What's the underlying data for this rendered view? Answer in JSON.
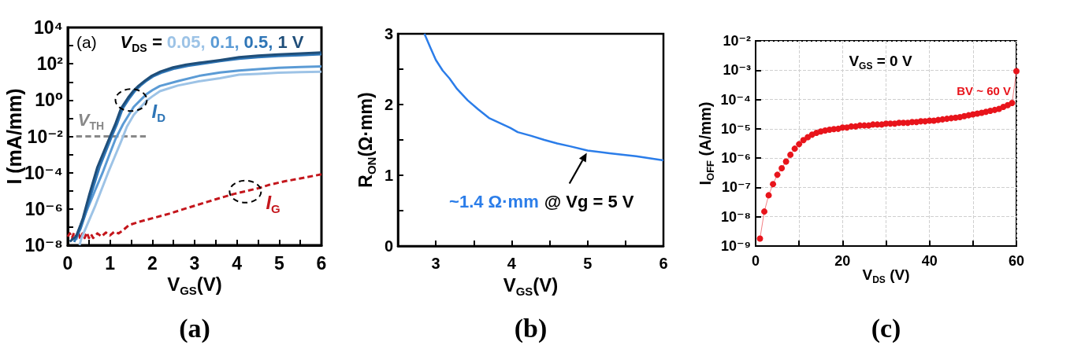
{
  "chart_data": [
    {
      "type": "line",
      "title": "(a)",
      "xlabel": "V$_{GS}$(V)",
      "ylabel": "I (mA/mm)",
      "legend_title": "V$_{DS}$ =",
      "legend": "top",
      "log": "y",
      "xlim": [
        0,
        6
      ],
      "xticks": [
        0,
        {
          "value": 0.5,
          "label": null
        },
        1,
        {
          "value": 1.5,
          "label": null
        },
        2,
        {
          "value": 2.5,
          "label": null
        },
        3,
        {
          "value": 3.5,
          "label": null
        },
        4,
        {
          "value": 4.5,
          "label": null
        },
        5,
        {
          "value": 5.5,
          "label": null
        },
        6
      ],
      "ylim": [
        1e-08,
        10000
      ],
      "yticks": [
        {
          "value": 1e-08,
          "label": "10⁻⁸"
        },
        {
          "value": 1e-07,
          "label": null
        },
        {
          "value": 1e-06,
          "label": "10⁻⁶"
        },
        {
          "value": 1e-05,
          "label": null
        },
        {
          "value": 0.0001,
          "label": "10⁻⁴"
        },
        {
          "value": 0.001,
          "label": null
        },
        {
          "value": 0.01,
          "label": "10⁻²"
        },
        {
          "value": 0.1,
          "label": null
        },
        {
          "value": 1,
          "label": "10⁰"
        },
        {
          "value": 10,
          "label": null
        },
        {
          "value": 100,
          "label": "10²"
        },
        {
          "value": 1000,
          "label": null
        },
        {
          "value": 10000,
          "label": "10⁴"
        }
      ],
      "annotations": [
        "(a)",
        {
          "text": "I$_{D}$",
          "x": 1.5,
          "y": 1
        },
        {
          "text": "I$_{G}$",
          "x": 4.2,
          "y": 9e-06
        }
      ],
      "series": [
        {
          "name": "V$_{TH}$",
          "color": "#888888",
          "line_style": "dashed",
          "x": [
            0.2,
            1.85
          ],
          "values": [
            0.01,
            0.01
          ]
        },
        {
          "color": "#c4161c",
          "line_style": "dashed",
          "x": [
            0,
            0.05,
            0.1,
            0.15,
            0.2,
            0.25,
            0.3,
            0.35,
            0.4,
            0.45,
            0.5,
            0.55,
            0.6,
            0.7,
            0.8,
            0.9,
            1.0,
            1.1,
            1.2,
            1.3,
            1.45,
            1.7,
            2.07,
            2.4,
            2.69,
            3.0,
            3.31,
            3.6,
            3.94,
            4.25,
            4.56,
            4.75,
            5.12,
            5.5,
            6
          ],
          "values": [
            3e-08,
            4.5e-08,
            2.5e-08,
            5e-08,
            3e-08,
            5.5e-08,
            2e-08,
            4.5e-08,
            2.5e-08,
            5e-08,
            2.5e-08,
            4e-08,
            2.5e-08,
            4.5e-08,
            3e-08,
            5e-08,
            3.5e-08,
            5.5e-08,
            4.5e-08,
            6.5e-08,
            1.3e-07,
            2e-07,
            3.4e-07,
            5.5e-07,
            9e-07,
            1.5e-06,
            2.5e-06,
            4e-06,
            6.8e-06,
            1e-05,
            1.5e-05,
            2.1e-05,
            3.3e-05,
            4.8e-05,
            8.1e-05
          ]
        },
        {
          "name": "0.05,",
          "color": "#9dc3e6",
          "x": [
            0.28,
            0.32,
            0.45,
            0.64,
            0.8,
            0.95,
            1.1,
            1.26,
            1.4,
            1.56,
            1.72,
            1.87,
            2.0,
            2.18,
            2.6,
            3.12,
            3.6,
            4.05,
            4.5,
            4.98,
            5.5,
            6
          ],
          "values": [
            1e-08,
            2.3e-08,
            1.2e-07,
            1.3e-06,
            1.2e-05,
            9.5e-05,
            0.00066,
            0.0052,
            0.035,
            0.15,
            0.4,
            0.95,
            1.6,
            3.1,
            6.3,
            11,
            16,
            25,
            28,
            32,
            35,
            37
          ]
        },
        {
          "name": "0.1,",
          "color": "#5b9bd5",
          "x": [
            0.2,
            0.26,
            0.4,
            0.51,
            0.65,
            0.82,
            1.0,
            1.13,
            1.31,
            1.56,
            1.72,
            1.87,
            2.0,
            2.18,
            2.6,
            3.12,
            3.6,
            4.05,
            4.5,
            4.98,
            5.5,
            6
          ],
          "values": [
            2e-08,
            6.6e-08,
            4.2e-07,
            1.8e-06,
            1.1e-05,
            9.5e-05,
            0.0012,
            0.0072,
            0.048,
            0.42,
            1,
            2.2,
            3.5,
            6,
            11,
            22,
            33,
            42,
            51,
            60,
            66,
            72
          ]
        },
        {
          "name": "0.5,",
          "color": "#2e75b6",
          "x": [
            0.15,
            0.3,
            0.4,
            0.55,
            0.75,
            1.04,
            1.16,
            1.3,
            1.47,
            1.59,
            1.72,
            1.87,
            2.03,
            2.24,
            2.53,
            2.84,
            3.16,
            3.6,
            4.05,
            4.5,
            4.98,
            5.5,
            6
          ],
          "values": [
            1.5e-08,
            8e-08,
            4e-07,
            6.3e-06,
            0.0002,
            0.01,
            0.045,
            0.35,
            1.4,
            3.2,
            6.3,
            12,
            21,
            34,
            55,
            78,
            100,
            140,
            190,
            230,
            270,
            300,
            340
          ]
        },
        {
          "name": "1 V",
          "color": "#1f4e79",
          "x": [
            0.05,
            0.2,
            0.3,
            0.36,
            0.51,
            0.7,
            1.0,
            1.12,
            1.26,
            1.43,
            1.55,
            1.68,
            1.83,
            1.99,
            2.2,
            2.49,
            2.8,
            3.12,
            3.6,
            4.05,
            4.5,
            4.98,
            5.5,
            6
          ],
          "values": [
            1.6e-08,
            3.2e-08,
            1.3e-07,
            3.2e-07,
            6.3e-06,
            0.0002,
            0.01,
            0.045,
            0.35,
            1.4,
            3.2,
            6.3,
            12,
            22,
            38,
            63,
            89,
            115,
            160,
            230,
            280,
            330,
            370,
            420
          ]
        }
      ]
    },
    {
      "type": "line",
      "title": "(b)",
      "xlabel": "V$_{GS}$(V)",
      "ylabel": "R$_{ON}$(Ω·mm)",
      "xlim": [
        2.5,
        6
      ],
      "xticks": [
        3,
        {
          "value": 3.5,
          "label": null
        },
        4,
        {
          "value": 4.5,
          "label": null
        },
        5,
        {
          "value": 5.5,
          "label": null
        },
        6
      ],
      "ylim": [
        0,
        3
      ],
      "yticks": [
        0,
        {
          "value": 0.5,
          "label": null
        },
        1,
        {
          "value": 1.5,
          "label": null
        },
        2,
        {
          "value": 2.5,
          "label": null
        },
        3
      ],
      "annotations": [
        "~1.4 Ω·mm",
        {
          "text": "@ Vg = 5 V",
          "x": 5,
          "y": 1.35
        }
      ],
      "color": "#2b7de9",
      "x": [
        2.85,
        2.93,
        3.0,
        3.09,
        3.18,
        3.28,
        3.42,
        3.56,
        3.7,
        3.84,
        3.98,
        4.08,
        4.25,
        4.43,
        4.6,
        4.77,
        5.0,
        5.29,
        5.64,
        6.0
      ],
      "values": [
        3.0,
        2.8,
        2.63,
        2.48,
        2.37,
        2.22,
        2.06,
        1.93,
        1.81,
        1.74,
        1.67,
        1.61,
        1.56,
        1.5,
        1.45,
        1.41,
        1.35,
        1.31,
        1.27,
        1.21
      ]
    },
    {
      "type": "line",
      "title": "(c)",
      "xlabel": "V$_{DS}$ (V)",
      "ylabel": "I$_{OFF}$ (A/mm)",
      "log": "y",
      "grid": true,
      "marker": "circle",
      "xlim": [
        0,
        60
      ],
      "xticks": [
        0,
        {
          "value": 10,
          "label": null
        },
        20,
        {
          "value": 30,
          "label": null
        },
        40,
        {
          "value": 50,
          "label": null
        },
        60
      ],
      "ylim": [
        1e-09,
        0.01
      ],
      "yticks": [
        {
          "value": 1e-09,
          "label": "10⁻⁹"
        },
        {
          "value": 1e-08,
          "label": "10⁻⁸"
        },
        {
          "value": 1e-07,
          "label": "10⁻⁷"
        },
        {
          "value": 1e-06,
          "label": "10⁻⁶"
        },
        {
          "value": 1e-05,
          "label": "10⁻⁵"
        },
        {
          "value": 0.0001,
          "label": "10⁻⁴"
        },
        {
          "value": 0.001,
          "label": "10⁻³"
        },
        {
          "value": 0.01,
          "label": "10⁻²"
        }
      ],
      "annotations": [
        "V$_{GS}$ = 0 V",
        {
          "text": "BV ~ 60 V",
          "x": 60,
          "y": 0.0002
        }
      ],
      "color": "#e8141b",
      "x": [
        1,
        2,
        3,
        4,
        5,
        6,
        7,
        8,
        9,
        10,
        11,
        12,
        13,
        14,
        15,
        16,
        17,
        18,
        19,
        20,
        21,
        22,
        23,
        24,
        25,
        26,
        27,
        28,
        29,
        30,
        31,
        32,
        33,
        34,
        35,
        36,
        37,
        38,
        39,
        40,
        41,
        42,
        43,
        44,
        45,
        46,
        47,
        48,
        49,
        50,
        51,
        52,
        53,
        54,
        55,
        56,
        57,
        58,
        59,
        60
      ],
      "values": [
        1.8e-09,
        1.5e-08,
        5.4e-08,
        1.3e-07,
        2.7e-07,
        4.5e-07,
        7.6e-07,
        1.3e-06,
        2.1e-06,
        3e-06,
        4.1e-06,
        5.2e-06,
        6.3e-06,
        7.3e-06,
        8.1e-06,
        8.8e-06,
        9.3e-06,
        9.8e-06,
        1e-05,
        1.1e-05,
        1.1e-05,
        1.2e-05,
        1.2e-05,
        1.3e-05,
        1.3e-05,
        1.3e-05,
        1.4e-05,
        1.4e-05,
        1.4e-05,
        1.5e-05,
        1.5e-05,
        1.5e-05,
        1.6e-05,
        1.6e-05,
        1.6e-05,
        1.7e-05,
        1.7e-05,
        1.8e-05,
        1.8e-05,
        1.9e-05,
        1.9e-05,
        2e-05,
        2.1e-05,
        2.2e-05,
        2.3e-05,
        2.4e-05,
        2.5e-05,
        2.7e-05,
        2.9e-05,
        3.1e-05,
        3.3e-05,
        3.5e-05,
        3.8e-05,
        4.1e-05,
        4.4e-05,
        4.8e-05,
        5.6e-05,
        6.4e-05,
        7.6e-05,
        0.00093
      ]
    }
  ]
}
